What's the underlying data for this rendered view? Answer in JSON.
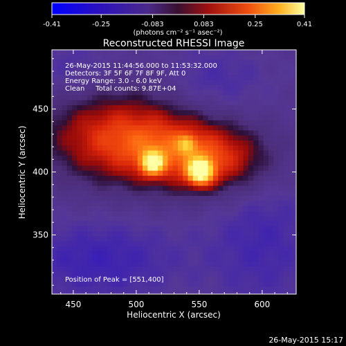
{
  "chart_data": {
    "type": "heatmap",
    "title": "Reconstructed RHESSI Image",
    "xlabel": "Heliocentric X (arcsec)",
    "ylabel": "Heliocentric Y (arcsec)",
    "xlim": [
      433,
      627
    ],
    "ylim": [
      303,
      497
    ],
    "xticks": [
      450,
      500,
      550,
      600
    ],
    "yticks": [
      350,
      400,
      450
    ],
    "colorbar": {
      "label": "(photons cm⁻² s⁻¹ asec⁻²)",
      "range": [
        -0.41,
        0.41
      ],
      "ticks": [
        "-0.41",
        "-0.25",
        "-0.083",
        "0.083",
        "0.25",
        "0.41"
      ]
    },
    "info_lines": [
      "26-May-2015 11:44:56.000 to 11:53:32.000",
      "Detectors: 3F 5F 6F 7F 8F 9F, Att 0",
      "Energy Range: 3.0 - 6.0 keV",
      "Clean     Total counts: 9.87E+04"
    ],
    "peak_text": "Position of Peak = [551,400]",
    "peak": [
      551,
      400
    ],
    "sources": [
      {
        "x": 551,
        "y": 400,
        "amplitude": 0.41
      },
      {
        "x": 513,
        "y": 407,
        "amplitude": 0.32
      },
      {
        "x": 540,
        "y": 422,
        "amplitude": 0.15
      }
    ]
  },
  "footer": {
    "timestamp": "26-May-2015 15:17"
  },
  "colors": {
    "background": "#000000",
    "negative": "#0000ff",
    "mid_negative": "#5a3a9a",
    "positive_low": "#c00000",
    "positive_high": "#ffff80"
  }
}
